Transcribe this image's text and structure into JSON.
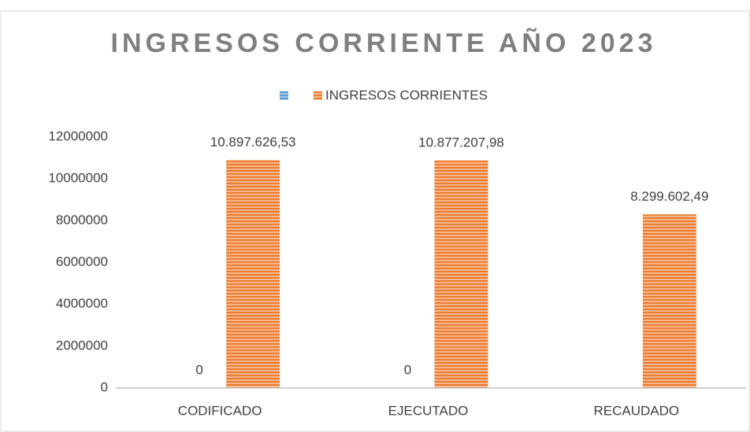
{
  "chart_data": {
    "type": "bar",
    "title": "INGRESOS CORRIENTE AÑO 2023",
    "categories": [
      "CODIFICADO",
      "EJECUTADO",
      "RECAUDADO"
    ],
    "series": [
      {
        "color": "#5b9bd5",
        "values": [
          0,
          0,
          null
        ],
        "value_labels": [
          "0",
          "0",
          null
        ]
      },
      {
        "name": "INGRESOS CORRIENTES",
        "color": "#ed7d31",
        "values": [
          10897626.53,
          10877207.98,
          8299602.49
        ],
        "value_labels": [
          "10.897.626,53",
          "10.877.207,98",
          "8.299.602,49"
        ]
      }
    ],
    "ylim": [
      0,
      12000000
    ],
    "yticks": [
      0,
      2000000,
      4000000,
      6000000,
      8000000,
      10000000,
      12000000
    ],
    "grid": false,
    "legend": "top"
  }
}
